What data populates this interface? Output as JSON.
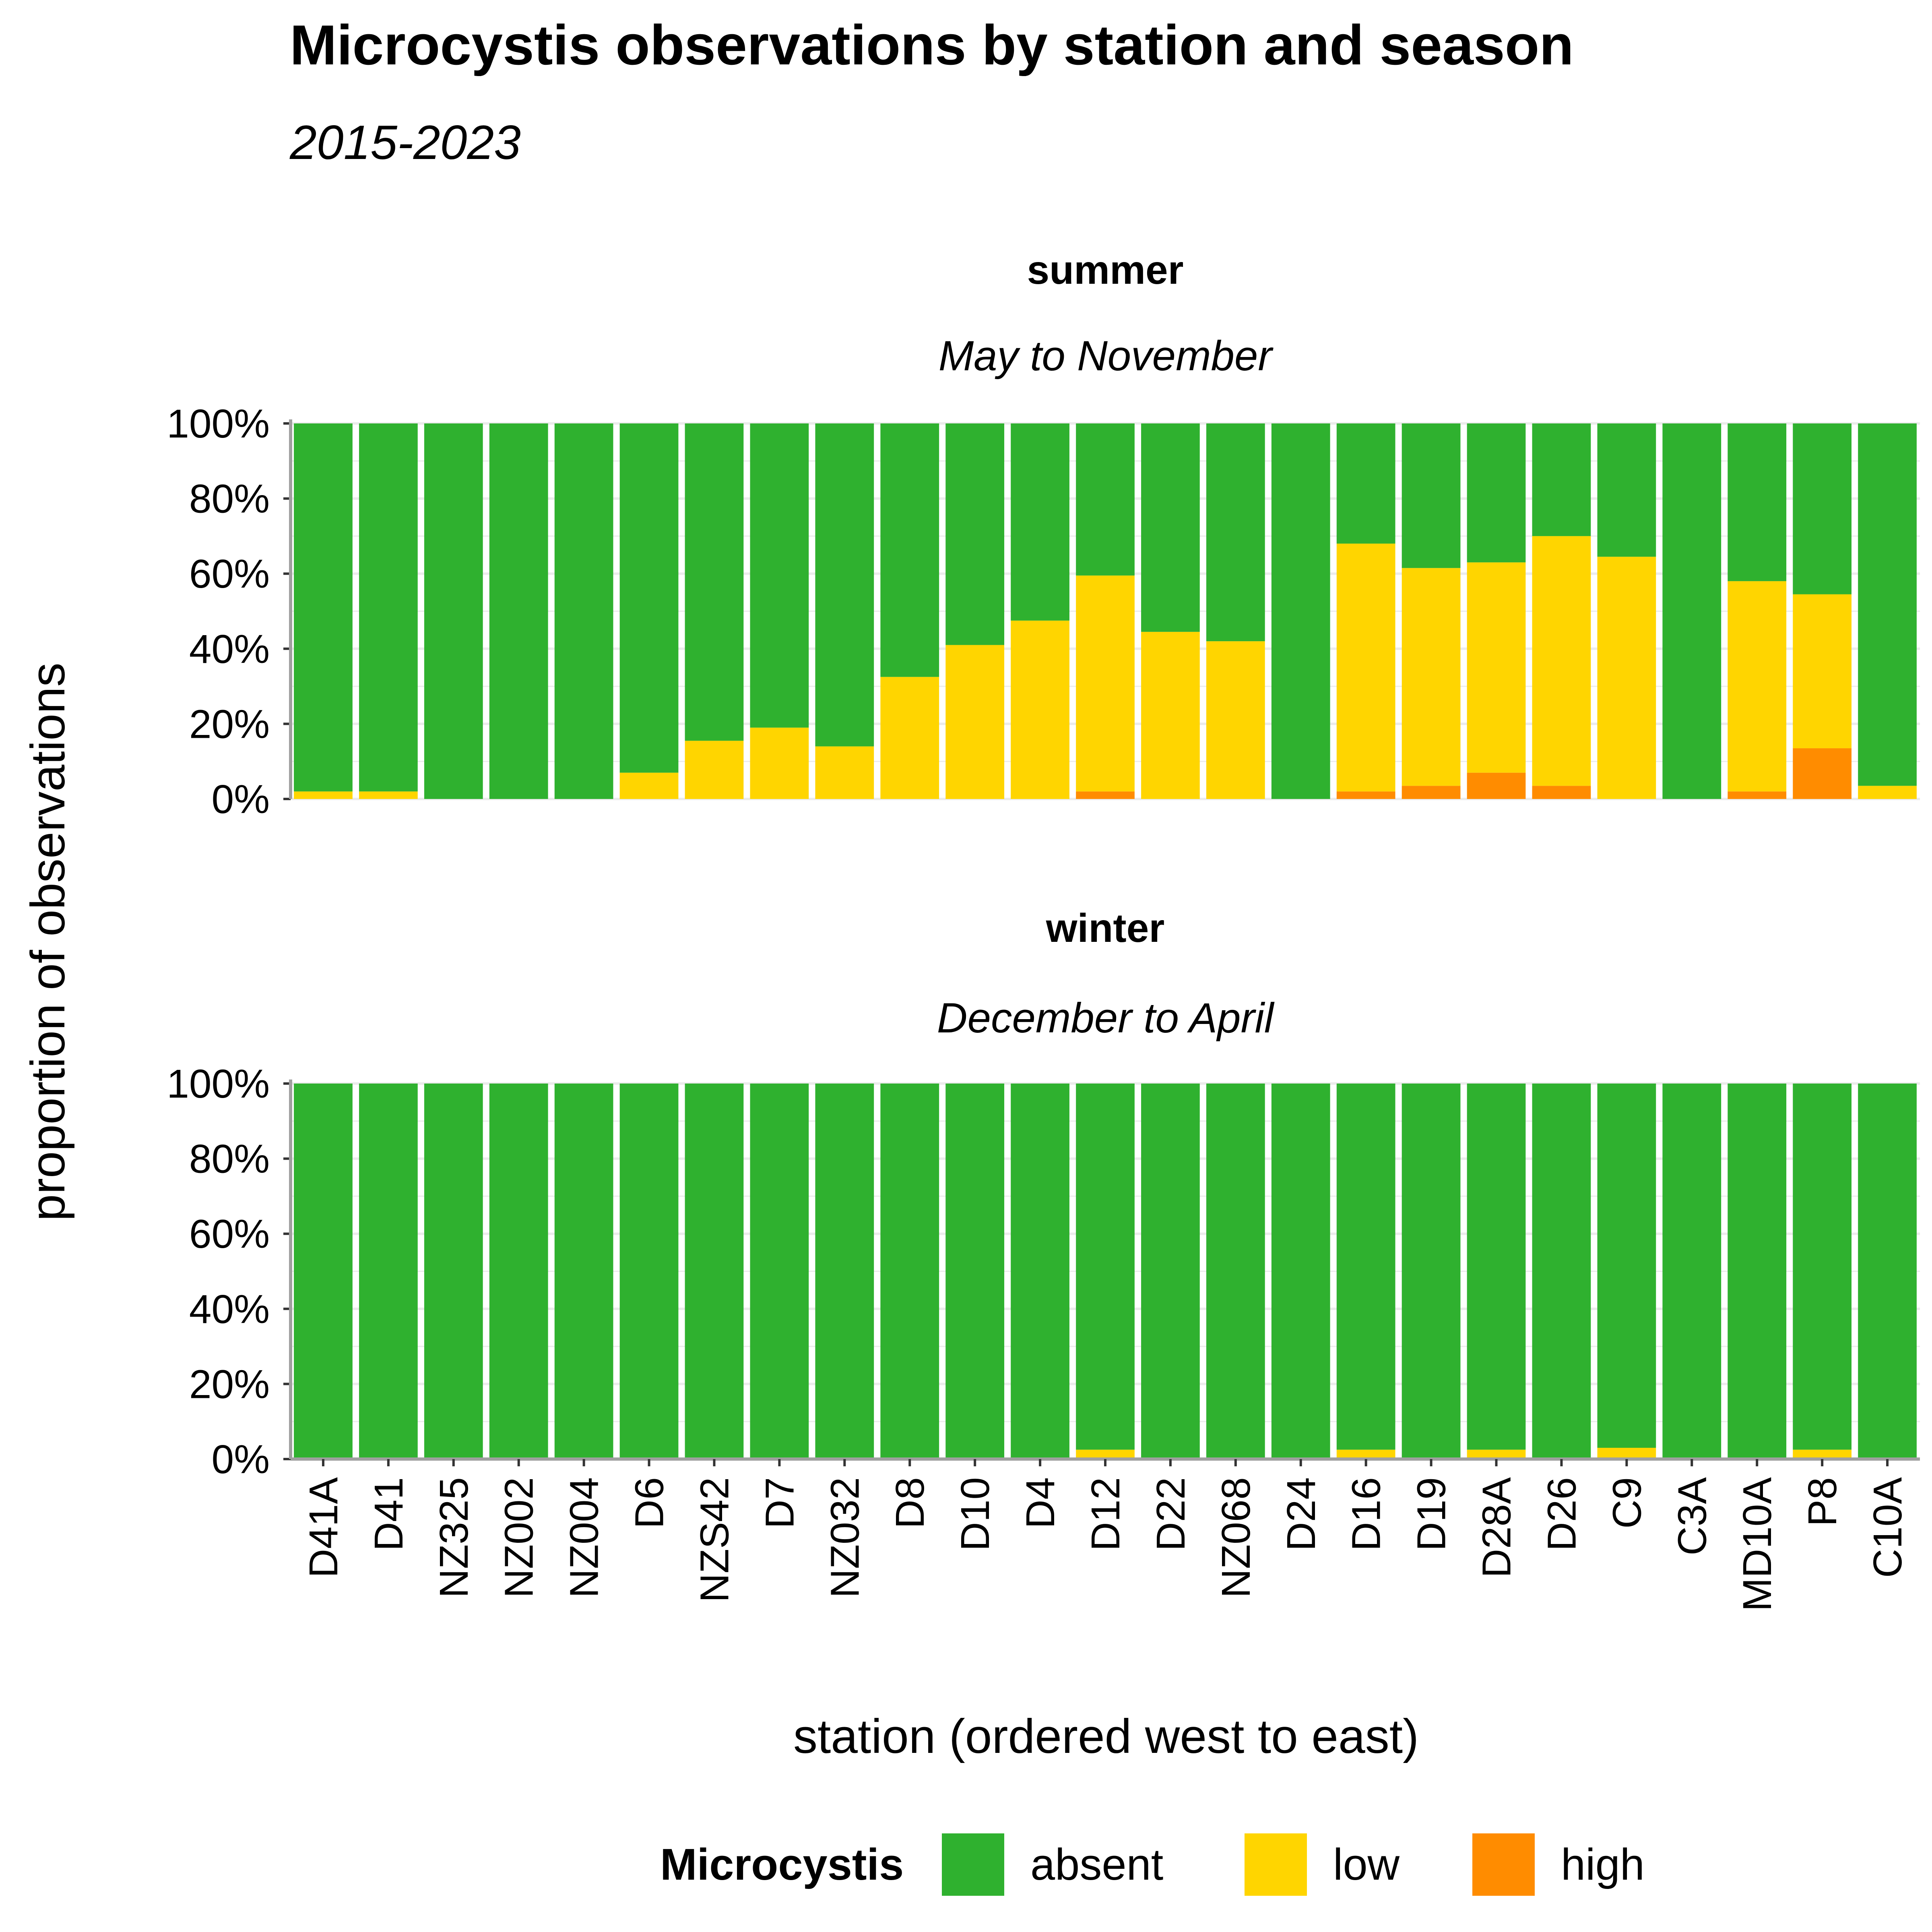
{
  "chart_data": {
    "type": "bar",
    "stacked": true,
    "title": "Microcystis observations by station and season",
    "subtitle": "2015-2023",
    "xlabel": "station (ordered west to east)",
    "ylabel": "proportion of observations",
    "ylim": [
      0,
      1
    ],
    "yticks": [
      "0%",
      "20%",
      "40%",
      "60%",
      "80%",
      "100%"
    ],
    "categories": [
      "D41A",
      "D41",
      "NZ325",
      "NZ002",
      "NZ004",
      "D6",
      "NZS42",
      "D7",
      "NZ032",
      "D8",
      "D10",
      "D4",
      "D12",
      "D22",
      "NZ068",
      "D24",
      "D16",
      "D19",
      "D28A",
      "D26",
      "C9",
      "C3A",
      "MD10A",
      "P8",
      "C10A"
    ],
    "legend": {
      "title": "Microcystis",
      "position": "bottom",
      "items": [
        {
          "label": "absent",
          "color": "#2fb12f"
        },
        {
          "label": "low",
          "color": "#ffd500"
        },
        {
          "label": "high",
          "color": "#ff8c00"
        }
      ]
    },
    "panels": [
      {
        "title": "summer",
        "subtitle": "May to November",
        "series": [
          {
            "name": "high",
            "values": [
              0,
              0,
              0,
              0,
              0,
              0,
              0,
              0,
              0,
              0,
              0,
              0,
              0.02,
              0,
              0,
              0,
              0.02,
              0.035,
              0.07,
              0.035,
              0,
              0,
              0.02,
              0.135,
              0
            ]
          },
          {
            "name": "low",
            "values": [
              0.02,
              0.02,
              0,
              0,
              0,
              0.07,
              0.155,
              0.19,
              0.14,
              0.325,
              0.41,
              0.475,
              0.575,
              0.445,
              0.42,
              0,
              0.66,
              0.58,
              0.56,
              0.665,
              0.645,
              0,
              0.56,
              0.41,
              0.035
            ]
          },
          {
            "name": "absent",
            "values": [
              0.98,
              0.98,
              1,
              1,
              1,
              0.93,
              0.845,
              0.81,
              0.86,
              0.675,
              0.59,
              0.525,
              0.405,
              0.555,
              0.58,
              1,
              0.32,
              0.385,
              0.37,
              0.3,
              0.355,
              1,
              0.42,
              0.455,
              0.965
            ]
          }
        ]
      },
      {
        "title": "winter",
        "subtitle": "December to April",
        "series": [
          {
            "name": "high",
            "values": [
              0,
              0,
              0,
              0,
              0,
              0,
              0,
              0,
              0,
              0,
              0,
              0,
              0,
              0,
              0,
              0,
              0,
              0,
              0,
              0,
              0,
              0,
              0,
              0,
              0
            ]
          },
          {
            "name": "low",
            "values": [
              0,
              0,
              0,
              0,
              0,
              0,
              0,
              0,
              0,
              0,
              0,
              0,
              0.025,
              0,
              0,
              0,
              0.025,
              0,
              0.025,
              0,
              0.03,
              0,
              0,
              0.025,
              0
            ]
          },
          {
            "name": "absent",
            "values": [
              1,
              1,
              1,
              1,
              1,
              1,
              1,
              1,
              1,
              1,
              1,
              1,
              0.975,
              1,
              1,
              1,
              0.975,
              1,
              0.975,
              1,
              0.97,
              1,
              1,
              0.975,
              1
            ]
          }
        ]
      }
    ]
  }
}
